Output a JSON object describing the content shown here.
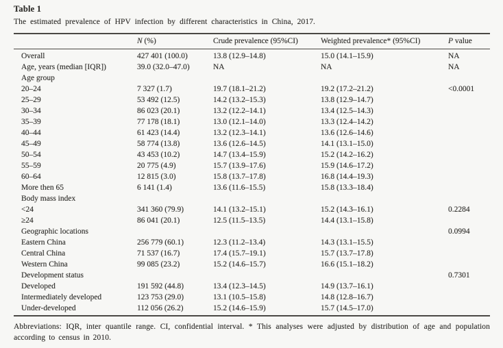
{
  "table": {
    "label": "Table 1",
    "caption": "The estimated prevalence of HPV infection by different characteristics in China, 2017.",
    "columns": {
      "rowhead": "",
      "n": "N (%)",
      "crude": "Crude prevalence (95%CI)",
      "weighted": "Weighted prevalence* (95%CI)",
      "p": "P value"
    },
    "rows": [
      {
        "label": "Overall",
        "n": "427 401 (100.0)",
        "crude": "13.8 (12.9–14.8)",
        "weighted": "15.0 (14.1–15.9)",
        "p": "NA"
      },
      {
        "label": "Age, years (median [IQR])",
        "n": "39.0 (32.0–47.0)",
        "crude": "NA",
        "weighted": "NA",
        "p": "NA"
      },
      {
        "label": "Age group",
        "n": "",
        "crude": "",
        "weighted": "",
        "p": ""
      },
      {
        "label": "20–24",
        "n": "7 327 (1.7)",
        "crude": "19.7 (18.1–21.2)",
        "weighted": "19.2 (17.2–21.2)",
        "p": "<0.0001"
      },
      {
        "label": "25–29",
        "n": "53 492 (12.5)",
        "crude": "14.2 (13.2–15.3)",
        "weighted": "13.8 (12.9–14.7)",
        "p": ""
      },
      {
        "label": "30–34",
        "n": "86 023 (20.1)",
        "crude": "13.2 (12.2–14.1)",
        "weighted": "13.4 (12.5–14.3)",
        "p": ""
      },
      {
        "label": "35–39",
        "n": "77 178 (18.1)",
        "crude": "13.0 (12.1–14.0)",
        "weighted": "13.3 (12.4–14.2)",
        "p": ""
      },
      {
        "label": "40–44",
        "n": "61 423 (14.4)",
        "crude": "13.2 (12.3–14.1)",
        "weighted": "13.6 (12.6–14.6)",
        "p": ""
      },
      {
        "label": "45–49",
        "n": "58 774 (13.8)",
        "crude": "13.6 (12.6–14.5)",
        "weighted": "14.1 (13.1–15.0)",
        "p": ""
      },
      {
        "label": "50–54",
        "n": "43 453 (10.2)",
        "crude": "14.7 (13.4–15.9)",
        "weighted": "15.2 (14.2–16.2)",
        "p": ""
      },
      {
        "label": "55–59",
        "n": "20 775 (4.9)",
        "crude": "15.7 (13.9–17.6)",
        "weighted": "15.9 (14.6–17.2)",
        "p": ""
      },
      {
        "label": "60–64",
        "n": "12 815 (3.0)",
        "crude": "15.8 (13.7–17.8)",
        "weighted": "16.8 (14.4–19.3)",
        "p": ""
      },
      {
        "label": "More then 65",
        "n": "6 141 (1.4)",
        "crude": "13.6 (11.6–15.5)",
        "weighted": "15.8 (13.3–18.4)",
        "p": ""
      },
      {
        "label": "Body mass index",
        "n": "",
        "crude": "",
        "weighted": "",
        "p": ""
      },
      {
        "label": "<24",
        "n": "341 360 (79.9)",
        "crude": "14.1 (13.2–15.1)",
        "weighted": "15.2 (14.3–16.1)",
        "p": "0.2284"
      },
      {
        "label": "≥24",
        "n": "86 041 (20.1)",
        "crude": "12.5 (11.5–13.5)",
        "weighted": "14.4 (13.1–15.8)",
        "p": ""
      },
      {
        "label": "Geographic locations",
        "n": "",
        "crude": "",
        "weighted": "",
        "p": "0.0994"
      },
      {
        "label": "Eastern China",
        "n": "256 779 (60.1)",
        "crude": "12.3 (11.2–13.4)",
        "weighted": "14.3 (13.1–15.5)",
        "p": ""
      },
      {
        "label": "Central China",
        "n": "71 537 (16.7)",
        "crude": "17.4 (15.7–19.1)",
        "weighted": "15.7 (13.7–17.8)",
        "p": ""
      },
      {
        "label": "Western China",
        "n": "99 085 (23.2)",
        "crude": "15.2 (14.6–15.7)",
        "weighted": "16.6 (15.1–18.2)",
        "p": ""
      },
      {
        "label": "Development status",
        "n": "",
        "crude": "",
        "weighted": "",
        "p": "0.7301"
      },
      {
        "label": "Developed",
        "n": "191 592 (44.8)",
        "crude": "13.4 (12.3–14.5)",
        "weighted": "14.9 (13.7–16.1)",
        "p": ""
      },
      {
        "label": "Intermediately developed",
        "n": "123 753 (29.0)",
        "crude": "13.1 (10.5–15.8)",
        "weighted": "14.8 (12.8–16.7)",
        "p": ""
      },
      {
        "label": "Under-developed",
        "n": "112 056 (26.2)",
        "crude": "15.2 (14.6–15.9)",
        "weighted": "15.7 (14.5–17.0)",
        "p": ""
      }
    ],
    "footnote": "Abbreviations: IQR, inter quantile range. CI, confidential interval. * This analyses were adjusted by distribution of age and population according to census in 2010.",
    "colors": {
      "page_background": "#f7f7f5",
      "text": "#2e2d2a",
      "rule": "#4a4844"
    }
  }
}
